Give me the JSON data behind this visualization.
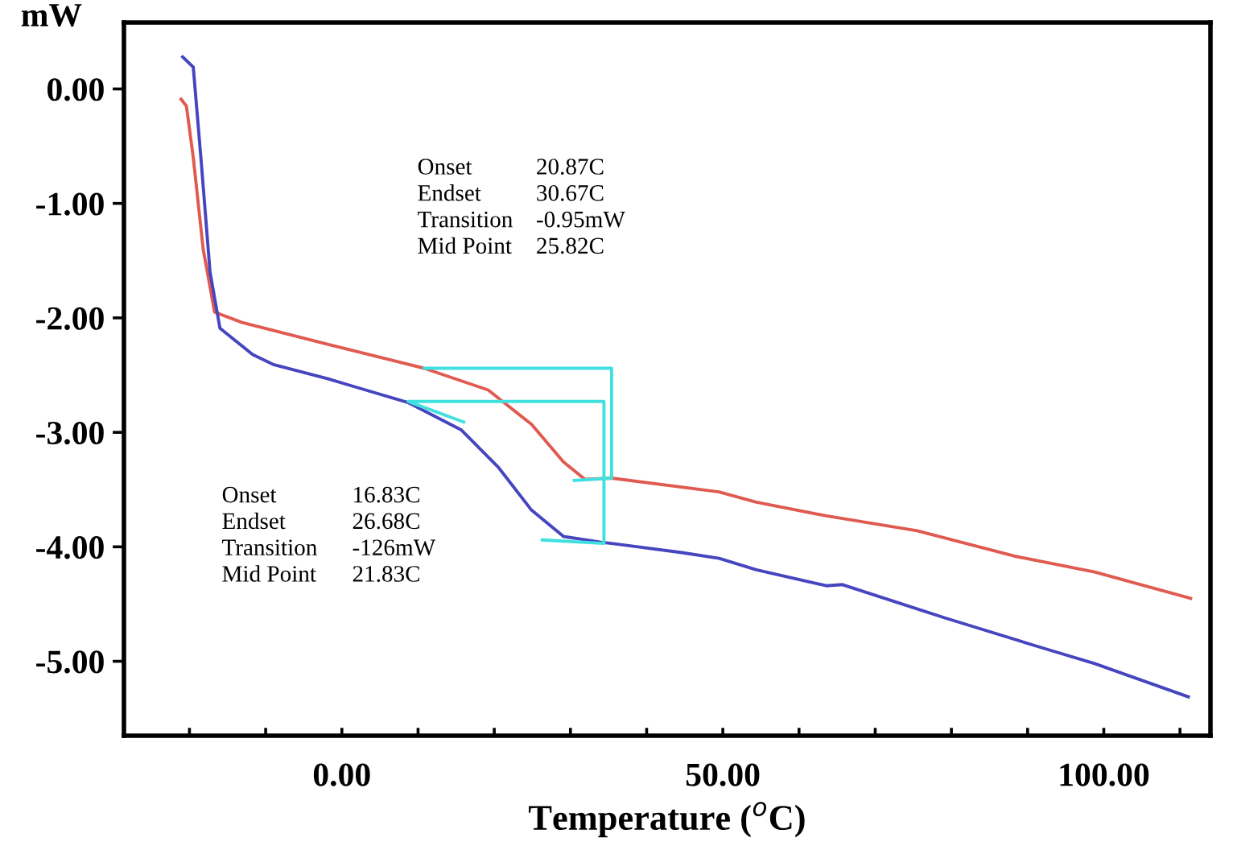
{
  "chart_data": {
    "type": "line",
    "xlabel": "Temperature ($^{o}$C)",
    "ylabel": "mW",
    "xlim": [
      -28.6,
      114
    ],
    "ylim": [
      -5.65,
      0.58
    ],
    "xticks": [
      {
        "value": -20,
        "label": null
      },
      {
        "value": -10,
        "label": null
      },
      {
        "value": 0,
        "label": "0.00"
      },
      {
        "value": 10,
        "label": null
      },
      {
        "value": 20,
        "label": null
      },
      {
        "value": 30,
        "label": null
      },
      {
        "value": 40,
        "label": null
      },
      {
        "value": 50,
        "label": "50.00"
      },
      {
        "value": 60,
        "label": null
      },
      {
        "value": 70,
        "label": null
      },
      {
        "value": 80,
        "label": null
      },
      {
        "value": 90,
        "label": null
      },
      {
        "value": 100,
        "label": "100.00"
      },
      {
        "value": 110,
        "label": null
      }
    ],
    "yticks": [
      {
        "value": 0,
        "label": "0.00"
      },
      {
        "value": -1,
        "label": "-1.00"
      },
      {
        "value": -2,
        "label": "-2.00"
      },
      {
        "value": -3,
        "label": "-3.00"
      },
      {
        "value": -4,
        "label": "-4.00"
      },
      {
        "value": -5,
        "label": "-5.00"
      }
    ],
    "grid": false,
    "legend": false,
    "marker": "none",
    "line_style": "solid",
    "series": [
      {
        "color": "#e05a50",
        "x": [
          -21.1,
          -20.4,
          -19.5,
          -18.2,
          -16.7,
          -13.1,
          -1.9,
          10.8,
          19.2,
          24.9,
          29.1,
          31.9,
          35.4,
          49.5,
          54.4,
          63.6,
          75.5,
          88.2,
          98.8,
          111.4
        ],
        "values": [
          -0.09,
          -0.15,
          -0.6,
          -1.4,
          -1.95,
          -2.04,
          -2.23,
          -2.44,
          -2.63,
          -2.93,
          -3.26,
          -3.41,
          -3.4,
          -3.52,
          -3.61,
          -3.73,
          -3.86,
          -4.08,
          -4.22,
          -4.45
        ]
      },
      {
        "color": "#4545c0",
        "x": [
          -20.9,
          -19.5,
          -18.5,
          -17.3,
          -16.0,
          -11.7,
          -8.9,
          -1.9,
          1.6,
          8.7,
          15.7,
          20.6,
          24.9,
          29.1,
          34.0,
          35.4,
          44.6,
          49.5,
          54.4,
          63.6,
          65.7,
          79.1,
          91.8,
          98.8,
          111.1
        ],
        "values": [
          0.28,
          0.19,
          -0.6,
          -1.6,
          -2.09,
          -2.32,
          -2.41,
          -2.53,
          -2.6,
          -2.74,
          -2.98,
          -3.31,
          -3.68,
          -3.91,
          -3.96,
          -3.97,
          -4.05,
          -4.1,
          -4.2,
          -4.34,
          -4.33,
          -4.62,
          -4.88,
          -5.02,
          -5.31
        ]
      },
      {
        "color": "#40e0e0",
        "x": [
          30.5,
          35.4,
          35.4,
          10.8
        ],
        "values": [
          -3.42,
          -3.4,
          -2.44,
          -2.44
        ]
      },
      {
        "color": "#40e0e0",
        "x": [
          26.3,
          34.4,
          34.4,
          8.7,
          16.0
        ],
        "values": [
          -3.94,
          -3.97,
          -2.73,
          -2.73,
          -2.91
        ]
      }
    ],
    "annotations": [
      "Onset",
      "20.87C",
      "Endset",
      "30.67C",
      "Transition",
      "-0.95mW",
      "Mid Point",
      "25.82C",
      "Onset",
      "16.83C",
      "Endset",
      "26.68C",
      "Transition",
      "-126mW",
      "Mid Point",
      "21.83C"
    ]
  }
}
